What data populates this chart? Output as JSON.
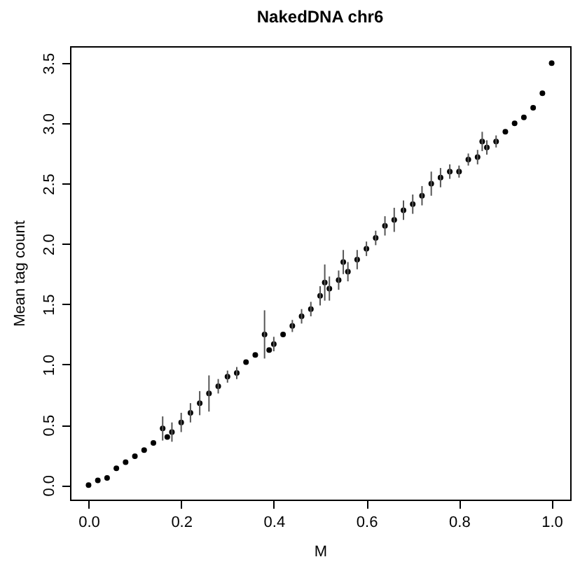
{
  "chart_data": {
    "type": "scatter",
    "title": "NakedDNA chr6",
    "xlabel": "M",
    "ylabel": "Mean tag count",
    "x": [
      0,
      0.02,
      0.04,
      0.06,
      0.08,
      0.1,
      0.12,
      0.14,
      0.16,
      0.17,
      0.18,
      0.2,
      0.22,
      0.24,
      0.26,
      0.28,
      0.3,
      0.32,
      0.34,
      0.36,
      0.38,
      0.39,
      0.4,
      0.42,
      0.44,
      0.46,
      0.48,
      0.5,
      0.51,
      0.52,
      0.54,
      0.55,
      0.56,
      0.58,
      0.6,
      0.62,
      0.64,
      0.66,
      0.68,
      0.7,
      0.72,
      0.74,
      0.76,
      0.78,
      0.8,
      0.82,
      0.84,
      0.85,
      0.86,
      0.88,
      0.9,
      0.92,
      0.94,
      0.96,
      0.98,
      1
    ],
    "series": [
      {
        "color": "#000000",
        "values": [
          0,
          0.04,
          0.06,
          0.14,
          0.19,
          0.24,
          0.29,
          0.35,
          0.47,
          0.4,
          0.44,
          0.52,
          0.6,
          0.68,
          0.76,
          0.82,
          0.9,
          0.93,
          1.02,
          1.08,
          1.25,
          1.12,
          1.17,
          1.25,
          1.32,
          1.4,
          1.46,
          1.57,
          1.68,
          1.63,
          1.7,
          1.85,
          1.77,
          1.87,
          1.96,
          2.05,
          2.15,
          2.2,
          2.28,
          2.33,
          2.4,
          2.5,
          2.55,
          2.6,
          2.6,
          2.7,
          2.72,
          2.85,
          2.8,
          2.85,
          2.93,
          3,
          3.05,
          3.13,
          3.25,
          3.5
        ],
        "errors": [
          null,
          null,
          null,
          null,
          null,
          null,
          null,
          null,
          0.1,
          null,
          0.08,
          0.08,
          0.08,
          0.1,
          0.15,
          0.06,
          0.05,
          0.05,
          null,
          null,
          0.2,
          null,
          0.06,
          null,
          0.05,
          0.06,
          0.06,
          0.08,
          0.15,
          0.1,
          0.08,
          0.1,
          0.08,
          0.08,
          0.06,
          0.06,
          0.08,
          0.1,
          0.08,
          0.08,
          0.08,
          0.1,
          0.08,
          0.06,
          0.05,
          0.05,
          0.06,
          0.08,
          0.06,
          0.05,
          null,
          null,
          null,
          null,
          null,
          null
        ]
      }
    ],
    "xlim": [
      -0.04,
      1.04
    ],
    "ylim": [
      -0.12,
      3.64
    ],
    "xticks": [
      {
        "value": 0,
        "label": "0.0"
      },
      0.2,
      0.4,
      0.6,
      0.8,
      {
        "value": 1,
        "label": "1.0"
      }
    ],
    "yticks": [
      {
        "value": 0,
        "label": "0.0"
      },
      0.5,
      {
        "value": 1,
        "label": "1.0"
      },
      1.5,
      {
        "value": 2,
        "label": "2.0"
      },
      2.5,
      {
        "value": 3,
        "label": "3.0"
      },
      3.5
    ],
    "marker": "circle",
    "grid": false
  }
}
